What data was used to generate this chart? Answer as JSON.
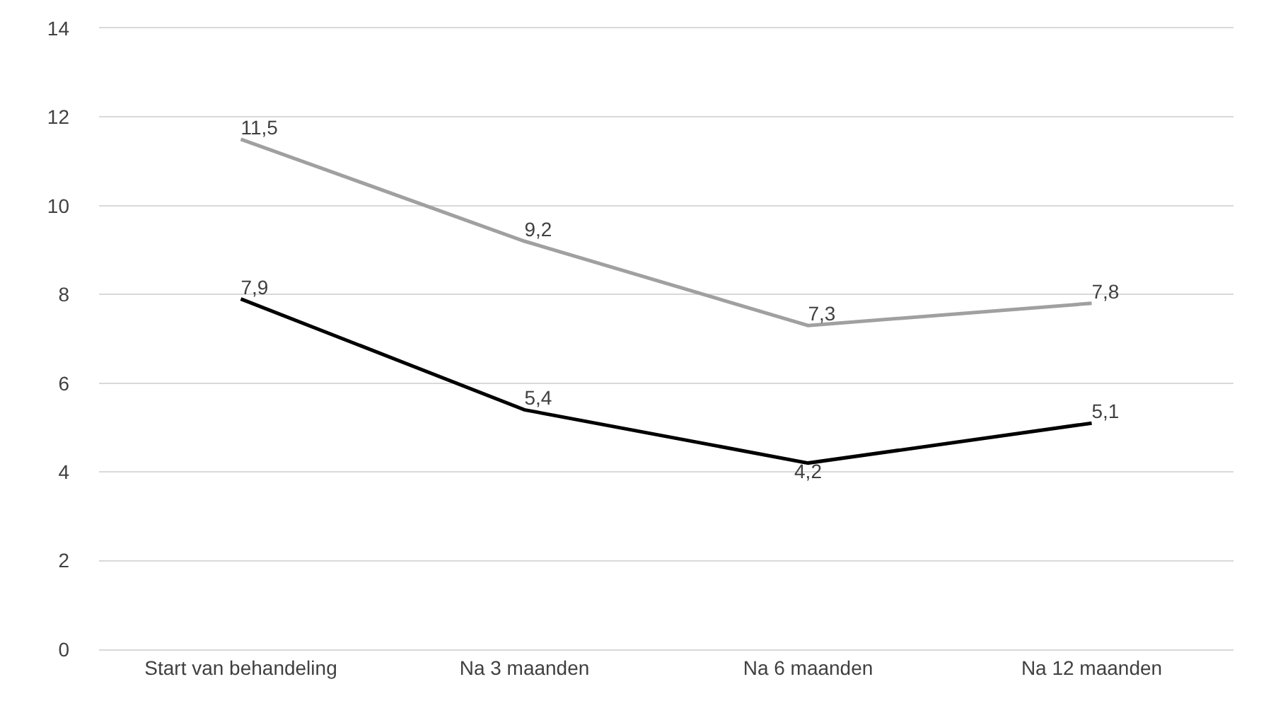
{
  "chart_data": {
    "type": "line",
    "categories": [
      "Start van behandeling",
      "Na 3 maanden",
      "Na 6 maanden",
      "Na 12 maanden"
    ],
    "series": [
      {
        "color": "#a0a0a0",
        "values": [
          11.5,
          9.2,
          7.3,
          7.8
        ],
        "value_labels": [
          "11,5",
          "9,2",
          "7,3",
          "7,8"
        ]
      },
      {
        "color": "#000000",
        "values": [
          7.9,
          5.4,
          4.2,
          5.1
        ],
        "value_labels": [
          "7,9",
          "5,4",
          "4,2",
          "5,1"
        ]
      }
    ],
    "ylim": [
      0,
      14
    ],
    "yticks": [
      0,
      2,
      4,
      6,
      8,
      10,
      12,
      14
    ],
    "grid": "y",
    "marker": "none",
    "line_style": "solid"
  }
}
